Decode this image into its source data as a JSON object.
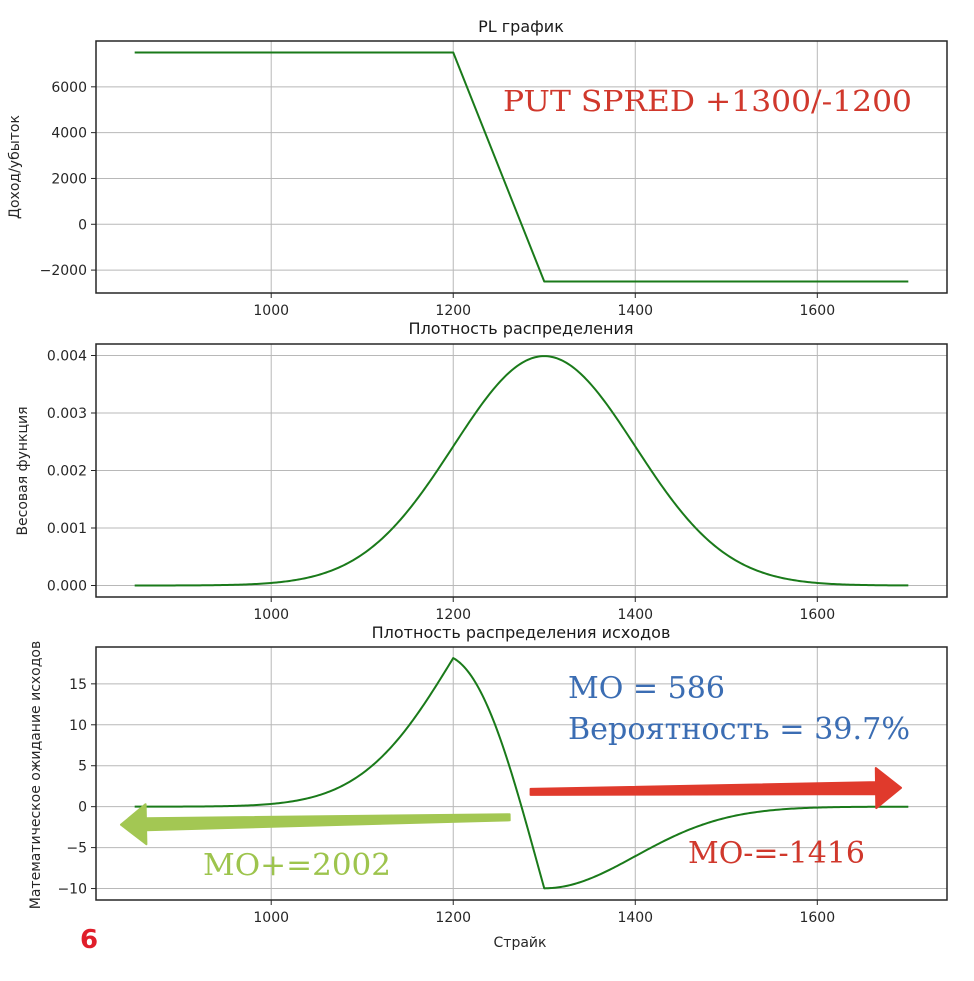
{
  "colors": {
    "series": "#1a7a1a",
    "grid": "#b8b8b8",
    "axis": "#262626",
    "annot_red": "#d0382c",
    "annot_blue": "#3b6db3",
    "annot_green": "#9dc44d",
    "arrow_red": "#e03a2c",
    "arrow_green": "#a3c753",
    "page_num": "#e01e2a"
  },
  "page_number": "6",
  "chart_data": [
    {
      "type": "line",
      "title": "PL график",
      "xlabel": "",
      "ylabel": "Доход/убыток",
      "xlim": [
        807.5,
        1742.5
      ],
      "ylim": [
        -3000,
        8000
      ],
      "xticks": [
        1000,
        1200,
        1400,
        1600
      ],
      "yticks": [
        -2000,
        0,
        2000,
        4000,
        6000
      ],
      "ytick_labels": [
        "−2000",
        "0",
        "2000",
        "4000",
        "6000"
      ],
      "grid": true,
      "series": [
        {
          "name": "PL",
          "x": [
            850,
            1200,
            1300,
            1700
          ],
          "y": [
            7500,
            7500,
            -2500,
            -2500
          ]
        }
      ],
      "annotations": [
        {
          "text": "PUT SPRED +1300/-1200",
          "color_key": "annot_red"
        }
      ]
    },
    {
      "type": "line",
      "title": "Плотность распределения",
      "xlabel": "",
      "ylabel": "Весовая функция",
      "xlim": [
        807.5,
        1742.5
      ],
      "ylim": [
        -0.0002,
        0.0042
      ],
      "xticks": [
        1000,
        1200,
        1400,
        1600
      ],
      "yticks": [
        0,
        0.001,
        0.002,
        0.003,
        0.004
      ],
      "ytick_labels": [
        "0.000",
        "0.001",
        "0.002",
        "0.003",
        "0.004"
      ],
      "grid": true,
      "series": [
        {
          "name": "Normal density",
          "distribution": "normal",
          "mean": 1300,
          "std": 100,
          "x_range": [
            850,
            1700
          ],
          "peak": 0.00399
        }
      ]
    },
    {
      "type": "line",
      "title": "Плотность распределения исходов",
      "xlabel": "Страйк",
      "ylabel": "Математическое ожидание исходов",
      "xlim": [
        807.5,
        1742.5
      ],
      "ylim": [
        -11.4,
        19.5
      ],
      "xticks": [
        1000,
        1200,
        1400,
        1600
      ],
      "yticks": [
        -10,
        -5,
        0,
        5,
        10,
        15
      ],
      "ytick_labels": [
        "−10",
        "−5",
        "0",
        "5",
        "10",
        "15"
      ],
      "grid": true,
      "series": [
        {
          "name": "PL × density",
          "definition": "product of PL and normal density (mean 1300, std 100)",
          "x_range": [
            850,
            1700
          ],
          "peak": {
            "x": 1200,
            "y": 18.1
          },
          "trough": {
            "x": 1300,
            "y": -10.0
          }
        }
      ],
      "annotations": [
        {
          "text": "МО = 586",
          "color_key": "annot_blue"
        },
        {
          "text": "Вероятность = 39.7%",
          "color_key": "annot_blue"
        },
        {
          "text": "МО+=2002",
          "color_key": "annot_green"
        },
        {
          "text": "МО-=-1416",
          "color_key": "annot_red"
        }
      ],
      "arrows": [
        {
          "name": "profit-arrow",
          "direction": "left",
          "color_key": "arrow_green",
          "from": [
            1262,
            -1.3
          ],
          "to": [
            835,
            -2.2
          ]
        },
        {
          "name": "loss-arrow",
          "direction": "right",
          "color_key": "arrow_red",
          "from": [
            1285,
            1.8
          ],
          "to": [
            1692,
            2.3
          ]
        }
      ]
    }
  ]
}
